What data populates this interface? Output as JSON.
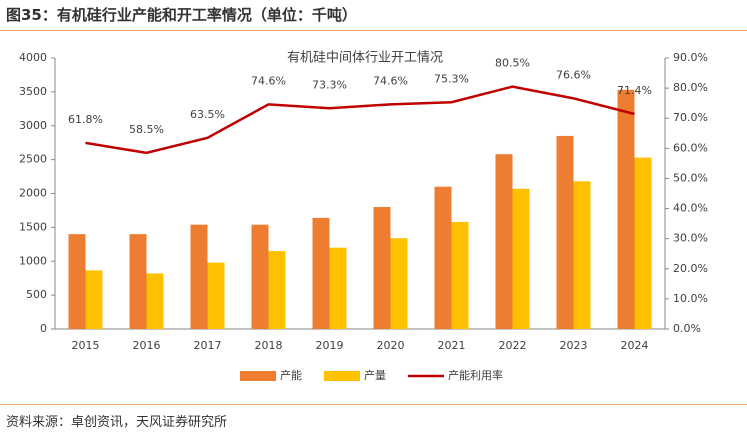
{
  "header": {
    "title": "图35：有机硅行业产能和开工率情况（单位：千吨）"
  },
  "footer": {
    "source": "资料来源：卓创资讯，天风证券研究所"
  },
  "chart_data": {
    "type": "bar",
    "title": "有机硅中间体行业开工情况",
    "categories": [
      "2015",
      "2016",
      "2017",
      "2018",
      "2019",
      "2020",
      "2021",
      "2022",
      "2023",
      "2024"
    ],
    "series": [
      {
        "name": "产能",
        "type": "bar",
        "color": "#ed7d31",
        "values": [
          1400,
          1400,
          1540,
          1540,
          1640,
          1800,
          2100,
          2580,
          2850,
          3530
        ]
      },
      {
        "name": "产量",
        "type": "bar",
        "color": "#ffc000",
        "values": [
          865,
          820,
          980,
          1150,
          1200,
          1340,
          1580,
          2070,
          2180,
          2530
        ]
      },
      {
        "name": "产能利用率",
        "type": "line",
        "axis": "y2",
        "color": "#c00000",
        "values": [
          61.8,
          58.5,
          63.5,
          74.6,
          73.3,
          74.6,
          75.3,
          80.5,
          76.6,
          71.4
        ],
        "value_labels": [
          "61.8%",
          "58.5%",
          "63.5%",
          "74.6%",
          "73.3%",
          "74.6%",
          "75.3%",
          "80.5%",
          "76.6%",
          "71.4%"
        ]
      }
    ],
    "ylim": [
      0,
      4000
    ],
    "yticks": [
      0,
      500,
      1000,
      1500,
      2000,
      2500,
      3000,
      3500,
      4000
    ],
    "y2lim": [
      0,
      90
    ],
    "y2ticks": [
      {
        "value": 0,
        "label": "0.0%"
      },
      {
        "value": 10,
        "label": "10.0%"
      },
      {
        "value": 20,
        "label": "20.0%"
      },
      {
        "value": 30,
        "label": "30.0%"
      },
      {
        "value": 40,
        "label": "40.0%"
      },
      {
        "value": 50,
        "label": "50.0%"
      },
      {
        "value": 60,
        "label": "60.0%"
      },
      {
        "value": 70,
        "label": "70.0%"
      },
      {
        "value": 80,
        "label": "80.0%"
      },
      {
        "value": 90,
        "label": "90.0%"
      }
    ],
    "legend": "bottom"
  }
}
